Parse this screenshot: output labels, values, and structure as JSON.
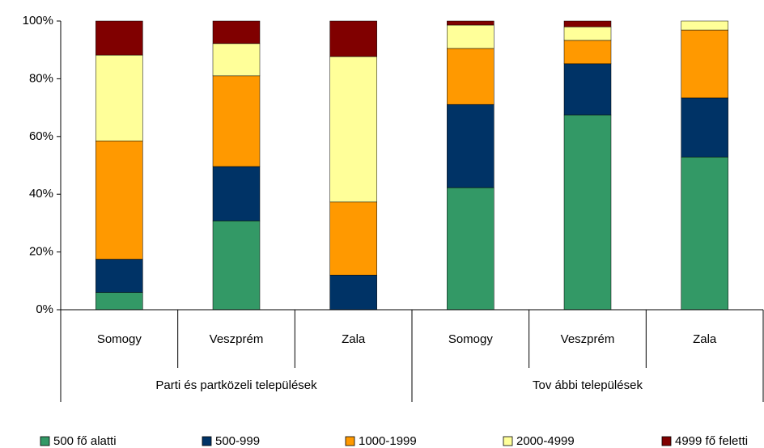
{
  "chart_data": {
    "type": "stacked_bar_100",
    "groups": [
      "Parti és partközeli települések",
      "Tov ábbi települések"
    ],
    "categories": [
      "Somogy",
      "Veszprém",
      "Zala",
      "Somogy",
      "Veszprém",
      "Zala"
    ],
    "series": [
      {
        "name": "500 fő alatti",
        "color": "#339966",
        "values": [
          6,
          30.8,
          0,
          42.3,
          67.5,
          52.9
        ]
      },
      {
        "name": "500-999",
        "color": "#003366",
        "values": [
          11.5,
          18.8,
          12,
          28.8,
          17.7,
          20.5
        ]
      },
      {
        "name": "1000-1999",
        "color": "#ff9900",
        "values": [
          41,
          31.4,
          25.3,
          19.4,
          8.1,
          23.5
        ]
      },
      {
        "name": "2000-4999",
        "color": "#ffff99",
        "values": [
          29.7,
          11.2,
          50.4,
          8.1,
          4.7,
          3.1
        ]
      },
      {
        "name": "4999 fő feletti",
        "color": "#800000",
        "values": [
          11.8,
          7.8,
          12.3,
          1.4,
          2,
          0
        ]
      }
    ],
    "ylim": [
      0,
      100
    ],
    "yticks": [
      {
        "value": 0,
        "label": "0%"
      },
      {
        "value": 20,
        "label": "20%"
      },
      {
        "value": 40,
        "label": "40%"
      },
      {
        "value": 60,
        "label": "60%"
      },
      {
        "value": 80,
        "label": "80%"
      },
      {
        "value": 100,
        "label": "100%"
      }
    ],
    "grid": false,
    "legend": "bottom"
  }
}
